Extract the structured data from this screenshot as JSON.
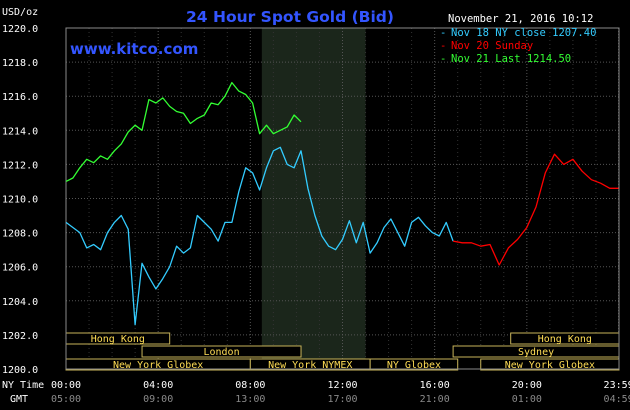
{
  "chart_data": {
    "type": "line",
    "title": "24 Hour Spot Gold (Bid)",
    "source": "www.kitco.com",
    "timestamp": "November 21, 2016 10:12",
    "ylabel": "USD/oz",
    "ylim": [
      1200,
      1220
    ],
    "xlim": [
      0,
      24
    ],
    "yticks": [
      1200,
      1202,
      1204,
      1206,
      1208,
      1210,
      1212,
      1214,
      1216,
      1218,
      1220
    ],
    "ytick_labels": [
      "1200.0",
      "1202.0",
      "1204.0",
      "1206.0",
      "1208.0",
      "1210.0",
      "1212.0",
      "1214.0",
      "1216.0",
      "1218.0",
      "1220.0"
    ],
    "xticks": [
      0,
      4,
      8,
      12,
      16,
      20,
      23.983
    ],
    "nytime_row_label": "NY Time",
    "gmt_row_label": "GMT",
    "nytime_labels": [
      "00:00",
      "04:00",
      "08:00",
      "12:00",
      "16:00",
      "20:00",
      "23:59"
    ],
    "gmt_labels": [
      "05:00",
      "09:00",
      "13:00",
      "17:00",
      "21:00",
      "01:00",
      "04:59"
    ],
    "ny_hours_shade": [
      8.5,
      13
    ],
    "grid": true,
    "legend_position": "top-right",
    "series": [
      {
        "name": "Nov 18 NY close 1207.40",
        "color": "#33ccff",
        "x": [
          0,
          0.3,
          0.6,
          0.9,
          1.2,
          1.5,
          1.8,
          2.1,
          2.4,
          2.7,
          3.0,
          3.3,
          3.6,
          3.9,
          4.2,
          4.5,
          4.8,
          5.1,
          5.4,
          5.7,
          6.0,
          6.3,
          6.6,
          6.9,
          7.2,
          7.5,
          7.8,
          8.1,
          8.4,
          8.7,
          9.0,
          9.3,
          9.6,
          9.9,
          10.2,
          10.5,
          10.8,
          11.1,
          11.4,
          11.7,
          12.0,
          12.3,
          12.6,
          12.9,
          13.2,
          13.5,
          13.8,
          14.1,
          14.4,
          14.7,
          15.0,
          15.3,
          15.6,
          15.9,
          16.2,
          16.5,
          16.8
        ],
        "values": [
          1208.6,
          1208.3,
          1208.0,
          1207.1,
          1207.3,
          1207.0,
          1208.0,
          1208.6,
          1209.0,
          1208.2,
          1202.6,
          1206.2,
          1205.4,
          1204.7,
          1205.3,
          1206.0,
          1207.2,
          1206.8,
          1207.1,
          1209.0,
          1208.6,
          1208.2,
          1207.5,
          1208.6,
          1208.6,
          1210.4,
          1211.8,
          1211.5,
          1210.5,
          1211.8,
          1212.8,
          1213.0,
          1212.0,
          1211.8,
          1212.8,
          1210.6,
          1209.0,
          1207.8,
          1207.2,
          1207.0,
          1207.6,
          1208.7,
          1207.4,
          1208.6,
          1206.8,
          1207.4,
          1208.3,
          1208.8,
          1208.0,
          1207.2,
          1208.6,
          1208.9,
          1208.4,
          1208.0,
          1207.8,
          1208.6,
          1207.5
        ]
      },
      {
        "name": "Nov 20 Sunday",
        "color": "#ff0000",
        "x": [
          16.8,
          17.2,
          17.6,
          18.0,
          18.4,
          18.8,
          19.2,
          19.6,
          20.0,
          20.4,
          20.8,
          21.2,
          21.6,
          22.0,
          22.4,
          22.8,
          23.2,
          23.6,
          23.98
        ],
        "values": [
          1207.5,
          1207.4,
          1207.4,
          1207.2,
          1207.3,
          1206.1,
          1207.1,
          1207.6,
          1208.3,
          1209.5,
          1211.5,
          1212.6,
          1212.0,
          1212.3,
          1211.6,
          1211.1,
          1210.9,
          1210.6,
          1210.6
        ]
      },
      {
        "name": "Nov 21 Last 1214.50",
        "color": "#33ff33",
        "x": [
          0,
          0.3,
          0.6,
          0.9,
          1.2,
          1.5,
          1.8,
          2.1,
          2.4,
          2.7,
          3.0,
          3.3,
          3.6,
          3.9,
          4.2,
          4.5,
          4.8,
          5.1,
          5.4,
          5.7,
          6.0,
          6.3,
          6.6,
          6.9,
          7.2,
          7.5,
          7.8,
          8.1,
          8.4,
          8.7,
          9.0,
          9.3,
          9.6,
          9.9,
          10.2
        ],
        "values": [
          1211.0,
          1211.2,
          1211.8,
          1212.3,
          1212.1,
          1212.5,
          1212.3,
          1212.8,
          1213.2,
          1213.9,
          1214.3,
          1214.0,
          1215.8,
          1215.6,
          1215.9,
          1215.4,
          1215.1,
          1215.0,
          1214.4,
          1214.7,
          1214.9,
          1215.6,
          1215.5,
          1216.0,
          1216.8,
          1216.3,
          1216.1,
          1215.6,
          1213.8,
          1214.3,
          1213.8,
          1214.0,
          1214.2,
          1214.9,
          1214.5
        ]
      }
    ],
    "sessions": [
      {
        "label": "Hong Kong",
        "row": 0,
        "start": 0,
        "end": 4.5
      },
      {
        "label": "Hong Kong",
        "row": 0,
        "start": 19.3,
        "end": 24
      },
      {
        "label": "London",
        "row": 1,
        "start": 3.3,
        "end": 10.2
      },
      {
        "label": "Sydney",
        "row": 1,
        "start": 16.8,
        "end": 24
      },
      {
        "label": "New York Globex",
        "row": 2,
        "start": 0,
        "end": 8.0
      },
      {
        "label": "New York NYMEX",
        "row": 2,
        "start": 8.0,
        "end": 13.2
      },
      {
        "label": "NY Globex",
        "row": 2,
        "start": 13.2,
        "end": 17.0
      },
      {
        "label": "New York Globex",
        "row": 2,
        "start": 18.0,
        "end": 24
      }
    ]
  }
}
